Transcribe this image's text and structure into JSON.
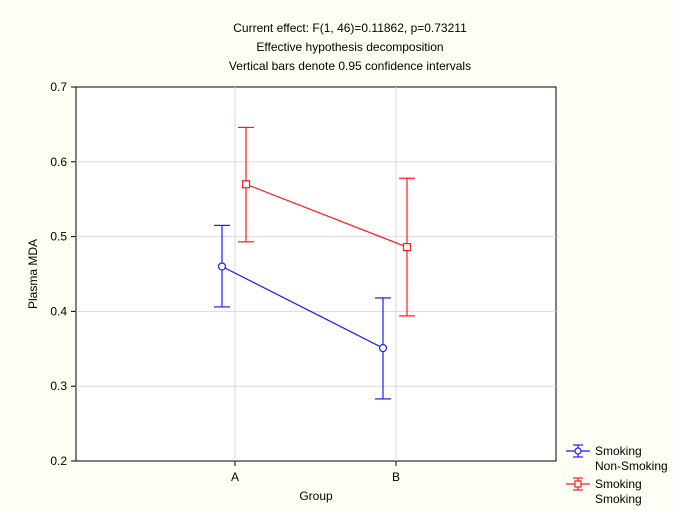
{
  "chart_data": {
    "type": "line",
    "title_lines": [
      "Current effect: F(1, 46)=0.11862, p=0.73211",
      "Effective hypothesis decomposition",
      "Vertical bars denote 0.95 confidence intervals"
    ],
    "xlabel": "Group",
    "ylabel": "Plasma MDA",
    "categories": [
      "A",
      "B"
    ],
    "ylim": [
      0.2,
      0.7
    ],
    "yticks": [
      "0.2",
      "0.3",
      "0.4",
      "0.5",
      "0.6",
      "0.7"
    ],
    "grid": true,
    "legend_position": "bottom-right-outside",
    "series": [
      {
        "legend_label_1": "Smoking",
        "legend_label_2": "Non-Smoking",
        "color": "#1a1aff",
        "marker": "circle",
        "values": [
          0.46,
          0.351
        ],
        "ci_low": [
          0.406,
          0.283
        ],
        "ci_high": [
          0.515,
          0.418
        ]
      },
      {
        "legend_label_1": "Smoking",
        "legend_label_2": "Smoking",
        "color": "#ff1a1a",
        "marker": "square",
        "values": [
          0.57,
          0.486
        ],
        "ci_low": [
          0.493,
          0.394
        ],
        "ci_high": [
          0.646,
          0.578
        ]
      }
    ]
  }
}
